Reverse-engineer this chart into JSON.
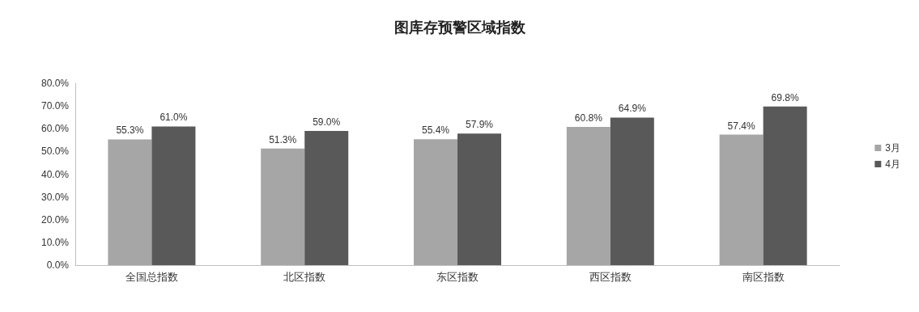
{
  "chart_data": {
    "type": "bar",
    "title": "图库存预警区域指数",
    "categories": [
      "全国总指数",
      "北区指数",
      "东区指数",
      "西区指数",
      "南区指数"
    ],
    "series": [
      {
        "name": "3月",
        "color": "#a6a6a6",
        "values": [
          55.3,
          51.3,
          55.4,
          60.8,
          57.4
        ],
        "value_labels": [
          "55.3%",
          "51.3%",
          "55.4%",
          "60.8%",
          "57.4%"
        ]
      },
      {
        "name": "4月",
        "color": "#595959",
        "values": [
          61.0,
          59.0,
          57.9,
          64.9,
          69.8
        ],
        "value_labels": [
          "61.0%",
          "59.0%",
          "57.9%",
          "64.9%",
          "69.8%"
        ]
      }
    ],
    "ylim": [
      0,
      80
    ],
    "yticks": [
      {
        "value": 0,
        "label": "0.0%"
      },
      {
        "value": 10,
        "label": "10.0%"
      },
      {
        "value": 20,
        "label": "20.0%"
      },
      {
        "value": 30,
        "label": "30.0%"
      },
      {
        "value": 40,
        "label": "40.0%"
      },
      {
        "value": 50,
        "label": "50.0%"
      },
      {
        "value": 60,
        "label": "60.0%"
      },
      {
        "value": 70,
        "label": "70.0%"
      },
      {
        "value": 80,
        "label": "80.0%"
      }
    ],
    "grid": false,
    "legend": "right"
  }
}
